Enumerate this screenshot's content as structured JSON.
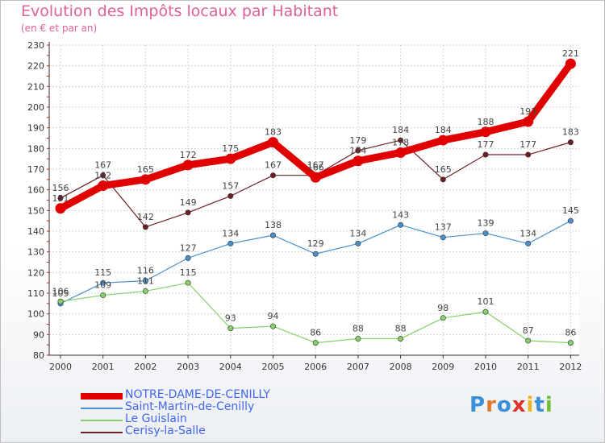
{
  "header": {
    "title": "Evolution des Impôts locaux par Habitant",
    "subtitle": "(en € et par an)"
  },
  "logo": {
    "text": "Proxiti",
    "letter_colors": [
      "#3a8fd8",
      "#e07a28",
      "#3a8fd8",
      "#e0302a",
      "#f0b020",
      "#3a8fd8",
      "#70c030"
    ]
  },
  "chart_data": {
    "type": "line",
    "x": [
      "2000",
      "2001",
      "2002",
      "2003",
      "2004",
      "2005",
      "2006",
      "2007",
      "2008",
      "2009",
      "2010",
      "2011",
      "2012"
    ],
    "ylim": [
      80,
      230
    ],
    "yticks": [
      80,
      90,
      100,
      110,
      120,
      130,
      140,
      150,
      160,
      170,
      180,
      190,
      200,
      210,
      220,
      230
    ],
    "grid": true,
    "legend_position": "bottom-left",
    "series": [
      {
        "name": "NOTRE-DAME-DE-CENILLY",
        "color": "#e00000",
        "emphasis": "thick",
        "values": [
          151,
          162,
          165,
          172,
          175,
          183,
          166,
          174,
          178,
          184,
          188,
          193,
          221
        ]
      },
      {
        "name": "Saint-Martin-de-Cenilly",
        "color": "#4a90cc",
        "values": [
          105,
          115,
          116,
          127,
          134,
          138,
          129,
          134,
          143,
          137,
          139,
          134,
          145
        ]
      },
      {
        "name": "Le Guislain",
        "color": "#86d06a",
        "values": [
          106,
          109,
          111,
          115,
          93,
          94,
          86,
          88,
          88,
          98,
          101,
          87,
          86
        ]
      },
      {
        "name": "Cerisy-la-Salle",
        "color": "#6e1f24",
        "values": [
          156,
          167,
          142,
          149,
          157,
          167,
          167,
          179,
          184,
          165,
          177,
          177,
          183
        ]
      }
    ]
  }
}
